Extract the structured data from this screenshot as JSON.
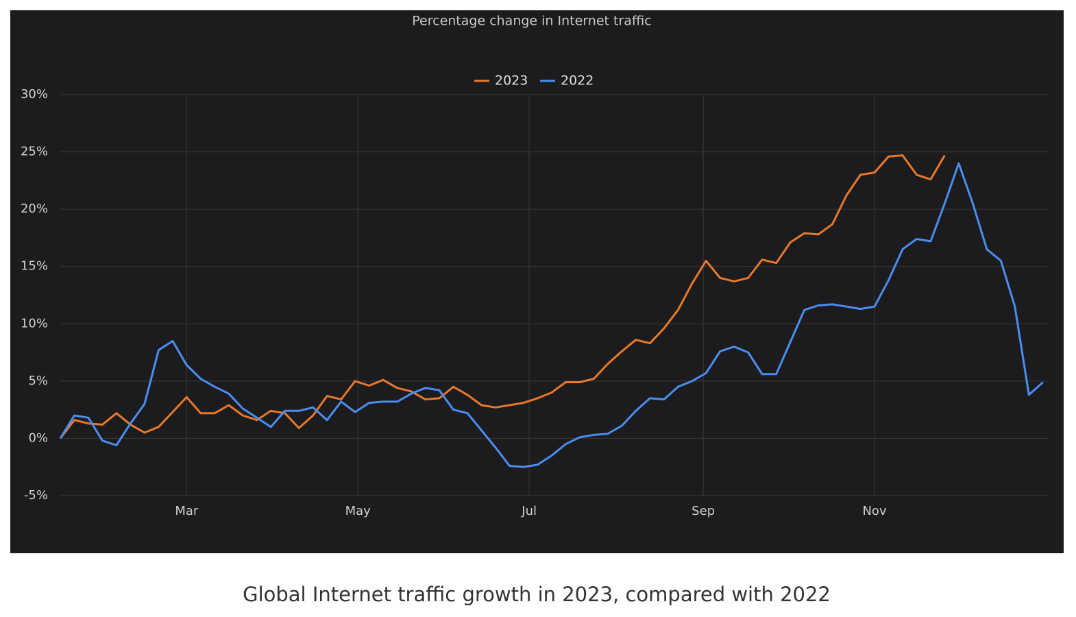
{
  "chart_data": {
    "type": "line",
    "title": "Percentage change in Internet traffic",
    "caption": "Global Internet traffic growth in 2023, compared with 2022",
    "x": [
      14,
      19,
      24,
      29,
      34,
      39,
      44,
      49,
      54,
      59,
      64,
      69,
      74,
      79,
      84,
      89,
      94,
      99,
      104,
      109,
      114,
      119,
      124,
      129,
      134,
      139,
      144,
      149,
      154,
      159,
      164,
      169,
      174,
      179,
      184,
      189,
      194,
      199,
      204,
      209,
      214,
      219,
      224,
      229,
      234,
      239,
      244,
      249,
      254,
      259,
      264,
      269,
      274,
      279,
      284,
      289,
      294,
      299,
      304,
      309,
      314,
      319,
      324,
      329,
      334,
      339,
      344,
      349,
      354,
      359,
      364
    ],
    "series": [
      {
        "name": "2023",
        "color": "#e8782a",
        "values": [
          0,
          1.6,
          1.3,
          1.2,
          2.2,
          1.2,
          0.5,
          1.0,
          2.3,
          3.6,
          2.2,
          2.2,
          2.9,
          2.0,
          1.6,
          2.4,
          2.2,
          0.9,
          2.0,
          3.7,
          3.4,
          5.0,
          4.6,
          5.1,
          4.4,
          4.1,
          3.4,
          3.5,
          4.5,
          3.8,
          2.9,
          2.7,
          2.9,
          3.1,
          3.5,
          4.0,
          4.9,
          4.9,
          5.2,
          6.5,
          7.6,
          8.6,
          8.3,
          9.6,
          11.2,
          13.5,
          15.5,
          14.0,
          13.7,
          14.0,
          15.6,
          15.3,
          17.1,
          17.9,
          17.8,
          18.7,
          21.2,
          23.0,
          23.2,
          24.6,
          24.7,
          23.0,
          22.6,
          24.7,
          null,
          null,
          null,
          null,
          null,
          null,
          null
        ]
      },
      {
        "name": "2022",
        "color": "#4a8ef0",
        "values": [
          0,
          2.0,
          1.8,
          -0.2,
          -0.6,
          1.3,
          3.0,
          7.7,
          8.5,
          6.4,
          5.2,
          4.5,
          3.9,
          2.6,
          1.8,
          1.0,
          2.4,
          2.4,
          2.7,
          1.6,
          3.2,
          2.3,
          3.1,
          3.2,
          3.2,
          3.9,
          4.4,
          4.2,
          2.5,
          2.2,
          0.7,
          -0.8,
          -2.4,
          -2.5,
          -2.3,
          -1.5,
          -0.5,
          0.1,
          0.3,
          0.4,
          1.1,
          2.4,
          3.5,
          3.4,
          4.5,
          5.0,
          5.7,
          7.6,
          8.0,
          7.5,
          5.6,
          5.6,
          8.4,
          11.2,
          11.6,
          11.7,
          11.5,
          11.3,
          11.5,
          13.8,
          16.5,
          17.4,
          17.2,
          20.5,
          24.0,
          20.5,
          16.5,
          15.5,
          11.5,
          3.8,
          4.9
        ]
      }
    ],
    "xlim": [
      14,
      366
    ],
    "xticks": [
      {
        "value": 59,
        "label": "Mar"
      },
      {
        "value": 120,
        "label": "May"
      },
      {
        "value": 181,
        "label": "Jul"
      },
      {
        "value": 243,
        "label": "Sep"
      },
      {
        "value": 304,
        "label": "Nov"
      }
    ],
    "ylim": [
      -5,
      30
    ],
    "yticks": [
      {
        "value": -5,
        "label": "-5%"
      },
      {
        "value": 0,
        "label": "0%"
      },
      {
        "value": 5,
        "label": "5%"
      },
      {
        "value": 10,
        "label": "10%"
      },
      {
        "value": 15,
        "label": "15%"
      },
      {
        "value": 20,
        "label": "20%"
      },
      {
        "value": 25,
        "label": "25%"
      },
      {
        "value": 30,
        "label": "30%"
      }
    ],
    "grid": true,
    "legend": "top"
  }
}
